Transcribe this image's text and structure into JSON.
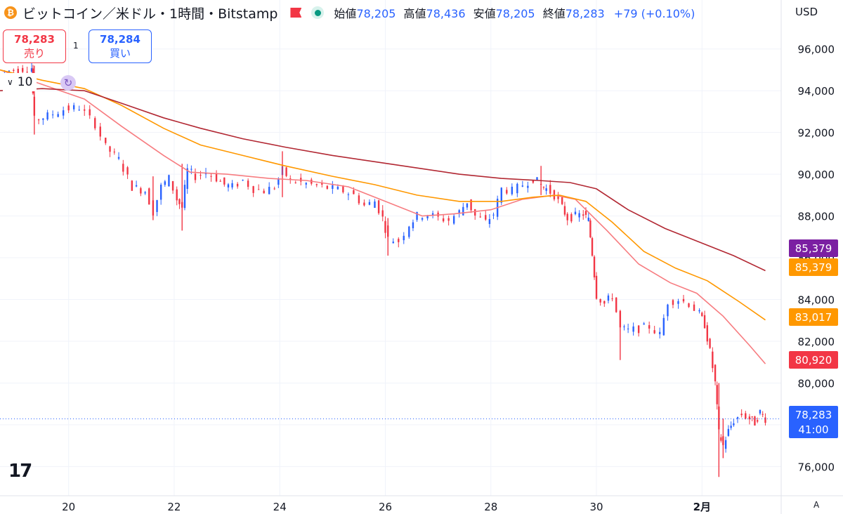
{
  "legend": {
    "title": "ビットコイン／米ドル・1時間・Bitstamp",
    "coin_glyph": "₿",
    "open_label": "始値",
    "open": "78,205",
    "high_label": "高値",
    "high": "78,436",
    "low_label": "安値",
    "low": "78,205",
    "close_label": "終値",
    "close": "78,283",
    "change": "+79 (+0.10%)"
  },
  "trade": {
    "sell_price": "78,283",
    "sell_label": "売り",
    "buy_price": "78,284",
    "buy_label": "買い",
    "spread": "1",
    "volume": "10"
  },
  "currency": "USD",
  "logo": "17",
  "auto_label": "A",
  "colors": {
    "up": "#2962ff",
    "down": "#f23645",
    "ma_fast": "#f77c80",
    "ma_mid": "#ff9800",
    "ma_slow": "#b22833"
  },
  "chart_data": {
    "type": "candlestick",
    "title": "ビットコイン／米ドル・1時間・Bitstamp",
    "currency": "USD",
    "x_ticks": [
      "20",
      "22",
      "24",
      "26",
      "28",
      "30",
      "2月"
    ],
    "x_tick_days": [
      20,
      22,
      24,
      26,
      28,
      30,
      32
    ],
    "xlim_days": [
      18.7,
      33.5
    ],
    "ylim": [
      74600,
      97000
    ],
    "y_ticks": [
      76000,
      78000,
      80000,
      82000,
      84000,
      86000,
      88000,
      90000,
      92000,
      94000,
      96000
    ],
    "price_path": [
      [
        18.7,
        94900
      ],
      [
        19.3,
        95100
      ],
      [
        19.35,
        92600
      ],
      [
        19.6,
        92800
      ],
      [
        19.9,
        93100
      ],
      [
        20.2,
        93200
      ],
      [
        20.5,
        92400
      ],
      [
        20.7,
        91300
      ],
      [
        20.95,
        90700
      ],
      [
        21.2,
        89400
      ],
      [
        21.45,
        89200
      ],
      [
        21.6,
        88200
      ],
      [
        21.75,
        89400
      ],
      [
        21.9,
        89800
      ],
      [
        22.05,
        88800
      ],
      [
        22.15,
        88400
      ],
      [
        22.25,
        90200
      ],
      [
        22.4,
        89900
      ],
      [
        22.6,
        90100
      ],
      [
        22.8,
        89800
      ],
      [
        22.95,
        89500
      ],
      [
        23.1,
        89400
      ],
      [
        23.3,
        89700
      ],
      [
        23.5,
        89300
      ],
      [
        23.7,
        89200
      ],
      [
        23.9,
        89400
      ],
      [
        24.05,
        90200
      ],
      [
        24.2,
        89700
      ],
      [
        24.4,
        89600
      ],
      [
        24.6,
        89500
      ],
      [
        24.8,
        89400
      ],
      [
        25.0,
        89300
      ],
      [
        25.2,
        89200
      ],
      [
        25.4,
        89000
      ],
      [
        25.6,
        88500
      ],
      [
        25.8,
        88700
      ],
      [
        25.95,
        87900
      ],
      [
        26.05,
        86900
      ],
      [
        26.25,
        86800
      ],
      [
        26.45,
        87600
      ],
      [
        26.6,
        88000
      ],
      [
        26.8,
        88100
      ],
      [
        27.0,
        87900
      ],
      [
        27.2,
        87800
      ],
      [
        27.4,
        88200
      ],
      [
        27.55,
        88700
      ],
      [
        27.7,
        88000
      ],
      [
        27.9,
        87700
      ],
      [
        28.05,
        88100
      ],
      [
        28.2,
        89300
      ],
      [
        28.4,
        89200
      ],
      [
        28.6,
        89500
      ],
      [
        28.8,
        89800
      ],
      [
        28.95,
        89500
      ],
      [
        29.05,
        89300
      ],
      [
        29.2,
        89000
      ],
      [
        29.35,
        88400
      ],
      [
        29.45,
        87900
      ],
      [
        29.6,
        88000
      ],
      [
        29.75,
        88100
      ],
      [
        29.85,
        87800
      ],
      [
        29.92,
        86200
      ],
      [
        30.0,
        84200
      ],
      [
        30.15,
        83800
      ],
      [
        30.3,
        84200
      ],
      [
        30.45,
        82600
      ],
      [
        30.6,
        82500
      ],
      [
        30.8,
        82600
      ],
      [
        31.0,
        82700
      ],
      [
        31.2,
        82300
      ],
      [
        31.35,
        83900
      ],
      [
        31.55,
        84000
      ],
      [
        31.75,
        83800
      ],
      [
        31.95,
        83300
      ],
      [
        32.05,
        82800
      ],
      [
        32.15,
        81500
      ],
      [
        32.25,
        80000
      ],
      [
        32.32,
        77600
      ],
      [
        32.4,
        77000
      ],
      [
        32.5,
        77700
      ],
      [
        32.6,
        78200
      ],
      [
        32.75,
        78500
      ],
      [
        32.9,
        78300
      ],
      [
        33.0,
        78100
      ],
      [
        33.1,
        78600
      ],
      [
        33.2,
        78283
      ]
    ],
    "spikes": [
      [
        19.35,
        91900,
        95200
      ],
      [
        21.6,
        87800,
        89900
      ],
      [
        22.15,
        87300,
        90500
      ],
      [
        24.05,
        88900,
        91100
      ],
      [
        26.05,
        86100,
        87900
      ],
      [
        28.95,
        89000,
        90400
      ],
      [
        30.45,
        81100,
        83400
      ],
      [
        32.32,
        75500,
        80000
      ],
      [
        32.4,
        76400,
        78300
      ]
    ],
    "series": [
      {
        "name": "MA fast",
        "color": "#f77c80",
        "values": [
          [
            18.7,
            95000
          ],
          [
            19.5,
            94300
          ],
          [
            20.3,
            93600
          ],
          [
            21.0,
            92300
          ],
          [
            21.8,
            90900
          ],
          [
            22.3,
            90100
          ],
          [
            23.0,
            90000
          ],
          [
            23.8,
            89800
          ],
          [
            24.5,
            89700
          ],
          [
            25.3,
            89400
          ],
          [
            26.0,
            88700
          ],
          [
            26.7,
            88000
          ],
          [
            27.3,
            88100
          ],
          [
            28.0,
            88300
          ],
          [
            28.6,
            88800
          ],
          [
            29.2,
            89000
          ],
          [
            29.6,
            88800
          ],
          [
            30.2,
            87300
          ],
          [
            30.8,
            85700
          ],
          [
            31.4,
            84800
          ],
          [
            31.9,
            84300
          ],
          [
            32.4,
            83200
          ],
          [
            32.9,
            81800
          ],
          [
            33.2,
            80920
          ]
        ]
      },
      {
        "name": "MA mid",
        "color": "#ff9800",
        "values": [
          [
            18.7,
            95000
          ],
          [
            19.5,
            94500
          ],
          [
            20.3,
            94100
          ],
          [
            21.0,
            93300
          ],
          [
            21.8,
            92200
          ],
          [
            22.5,
            91400
          ],
          [
            23.3,
            90900
          ],
          [
            24.1,
            90400
          ],
          [
            25.0,
            89900
          ],
          [
            25.8,
            89500
          ],
          [
            26.6,
            89000
          ],
          [
            27.4,
            88700
          ],
          [
            28.2,
            88700
          ],
          [
            28.8,
            88900
          ],
          [
            29.3,
            89000
          ],
          [
            29.8,
            88700
          ],
          [
            30.3,
            87700
          ],
          [
            30.9,
            86300
          ],
          [
            31.5,
            85500
          ],
          [
            32.1,
            84900
          ],
          [
            32.7,
            83900
          ],
          [
            33.2,
            83017
          ]
        ]
      },
      {
        "name": "MA slow",
        "color": "#b22833",
        "values": [
          [
            18.7,
            94000
          ],
          [
            19.5,
            94100
          ],
          [
            20.3,
            94000
          ],
          [
            21.0,
            93400
          ],
          [
            21.8,
            92700
          ],
          [
            22.5,
            92200
          ],
          [
            23.3,
            91700
          ],
          [
            24.1,
            91300
          ],
          [
            25.0,
            90900
          ],
          [
            25.8,
            90600
          ],
          [
            26.6,
            90300
          ],
          [
            27.4,
            90000
          ],
          [
            28.2,
            89800
          ],
          [
            28.9,
            89700
          ],
          [
            29.5,
            89600
          ],
          [
            30.0,
            89300
          ],
          [
            30.6,
            88300
          ],
          [
            31.3,
            87400
          ],
          [
            32.0,
            86700
          ],
          [
            32.6,
            86100
          ],
          [
            33.2,
            85379
          ]
        ]
      }
    ],
    "price_labels": [
      {
        "value": 85379,
        "text": "85,379",
        "color": "#7b1fa2"
      },
      {
        "value": 85379,
        "text": "85,379",
        "color": "#ff9800"
      },
      {
        "value": 83017,
        "text": "83,017",
        "color": "#ff9800"
      },
      {
        "value": 80920,
        "text": "80,920",
        "color": "#f23645"
      },
      {
        "value": 78283,
        "text": "78,283",
        "sub": "41:00",
        "color": "#2962ff"
      }
    ],
    "last_price": 78283
  }
}
